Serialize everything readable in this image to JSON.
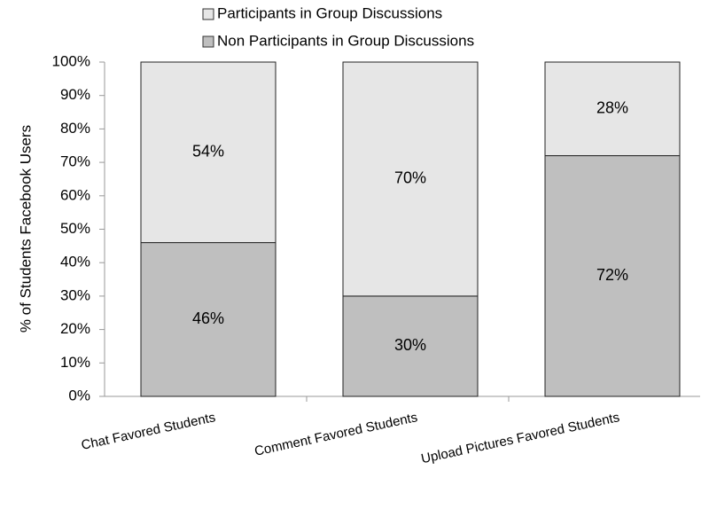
{
  "chart_data": {
    "type": "stacked_bar",
    "categories": [
      "Chat Favored Students",
      "Comment Favored Students",
      "Upload Pictures Favored Students"
    ],
    "series": [
      {
        "name": "Non Participants in Group Discussions",
        "color": "#bfbfbf",
        "values": [
          46,
          30,
          72
        ],
        "value_labels": [
          "46%",
          "30%",
          "72%"
        ]
      },
      {
        "name": "Participants in Group Discussions",
        "color": "#e6e6e6",
        "values": [
          54,
          70,
          28
        ],
        "value_labels": [
          "54%",
          "70%",
          "28%"
        ]
      }
    ],
    "y_label": "% of Students Facebook Users",
    "ylim": [
      0,
      100
    ],
    "yticks": [
      {
        "value": 0,
        "label": "0%"
      },
      {
        "value": 10,
        "label": "10%"
      },
      {
        "value": 20,
        "label": "20%"
      },
      {
        "value": 30,
        "label": "30%"
      },
      {
        "value": 40,
        "label": "40%"
      },
      {
        "value": 50,
        "label": "50%"
      },
      {
        "value": 60,
        "label": "60%"
      },
      {
        "value": 70,
        "label": "70%"
      },
      {
        "value": 80,
        "label": "80%"
      },
      {
        "value": 90,
        "label": "90%"
      },
      {
        "value": 100,
        "label": "100%"
      }
    ],
    "legend": "top"
  }
}
